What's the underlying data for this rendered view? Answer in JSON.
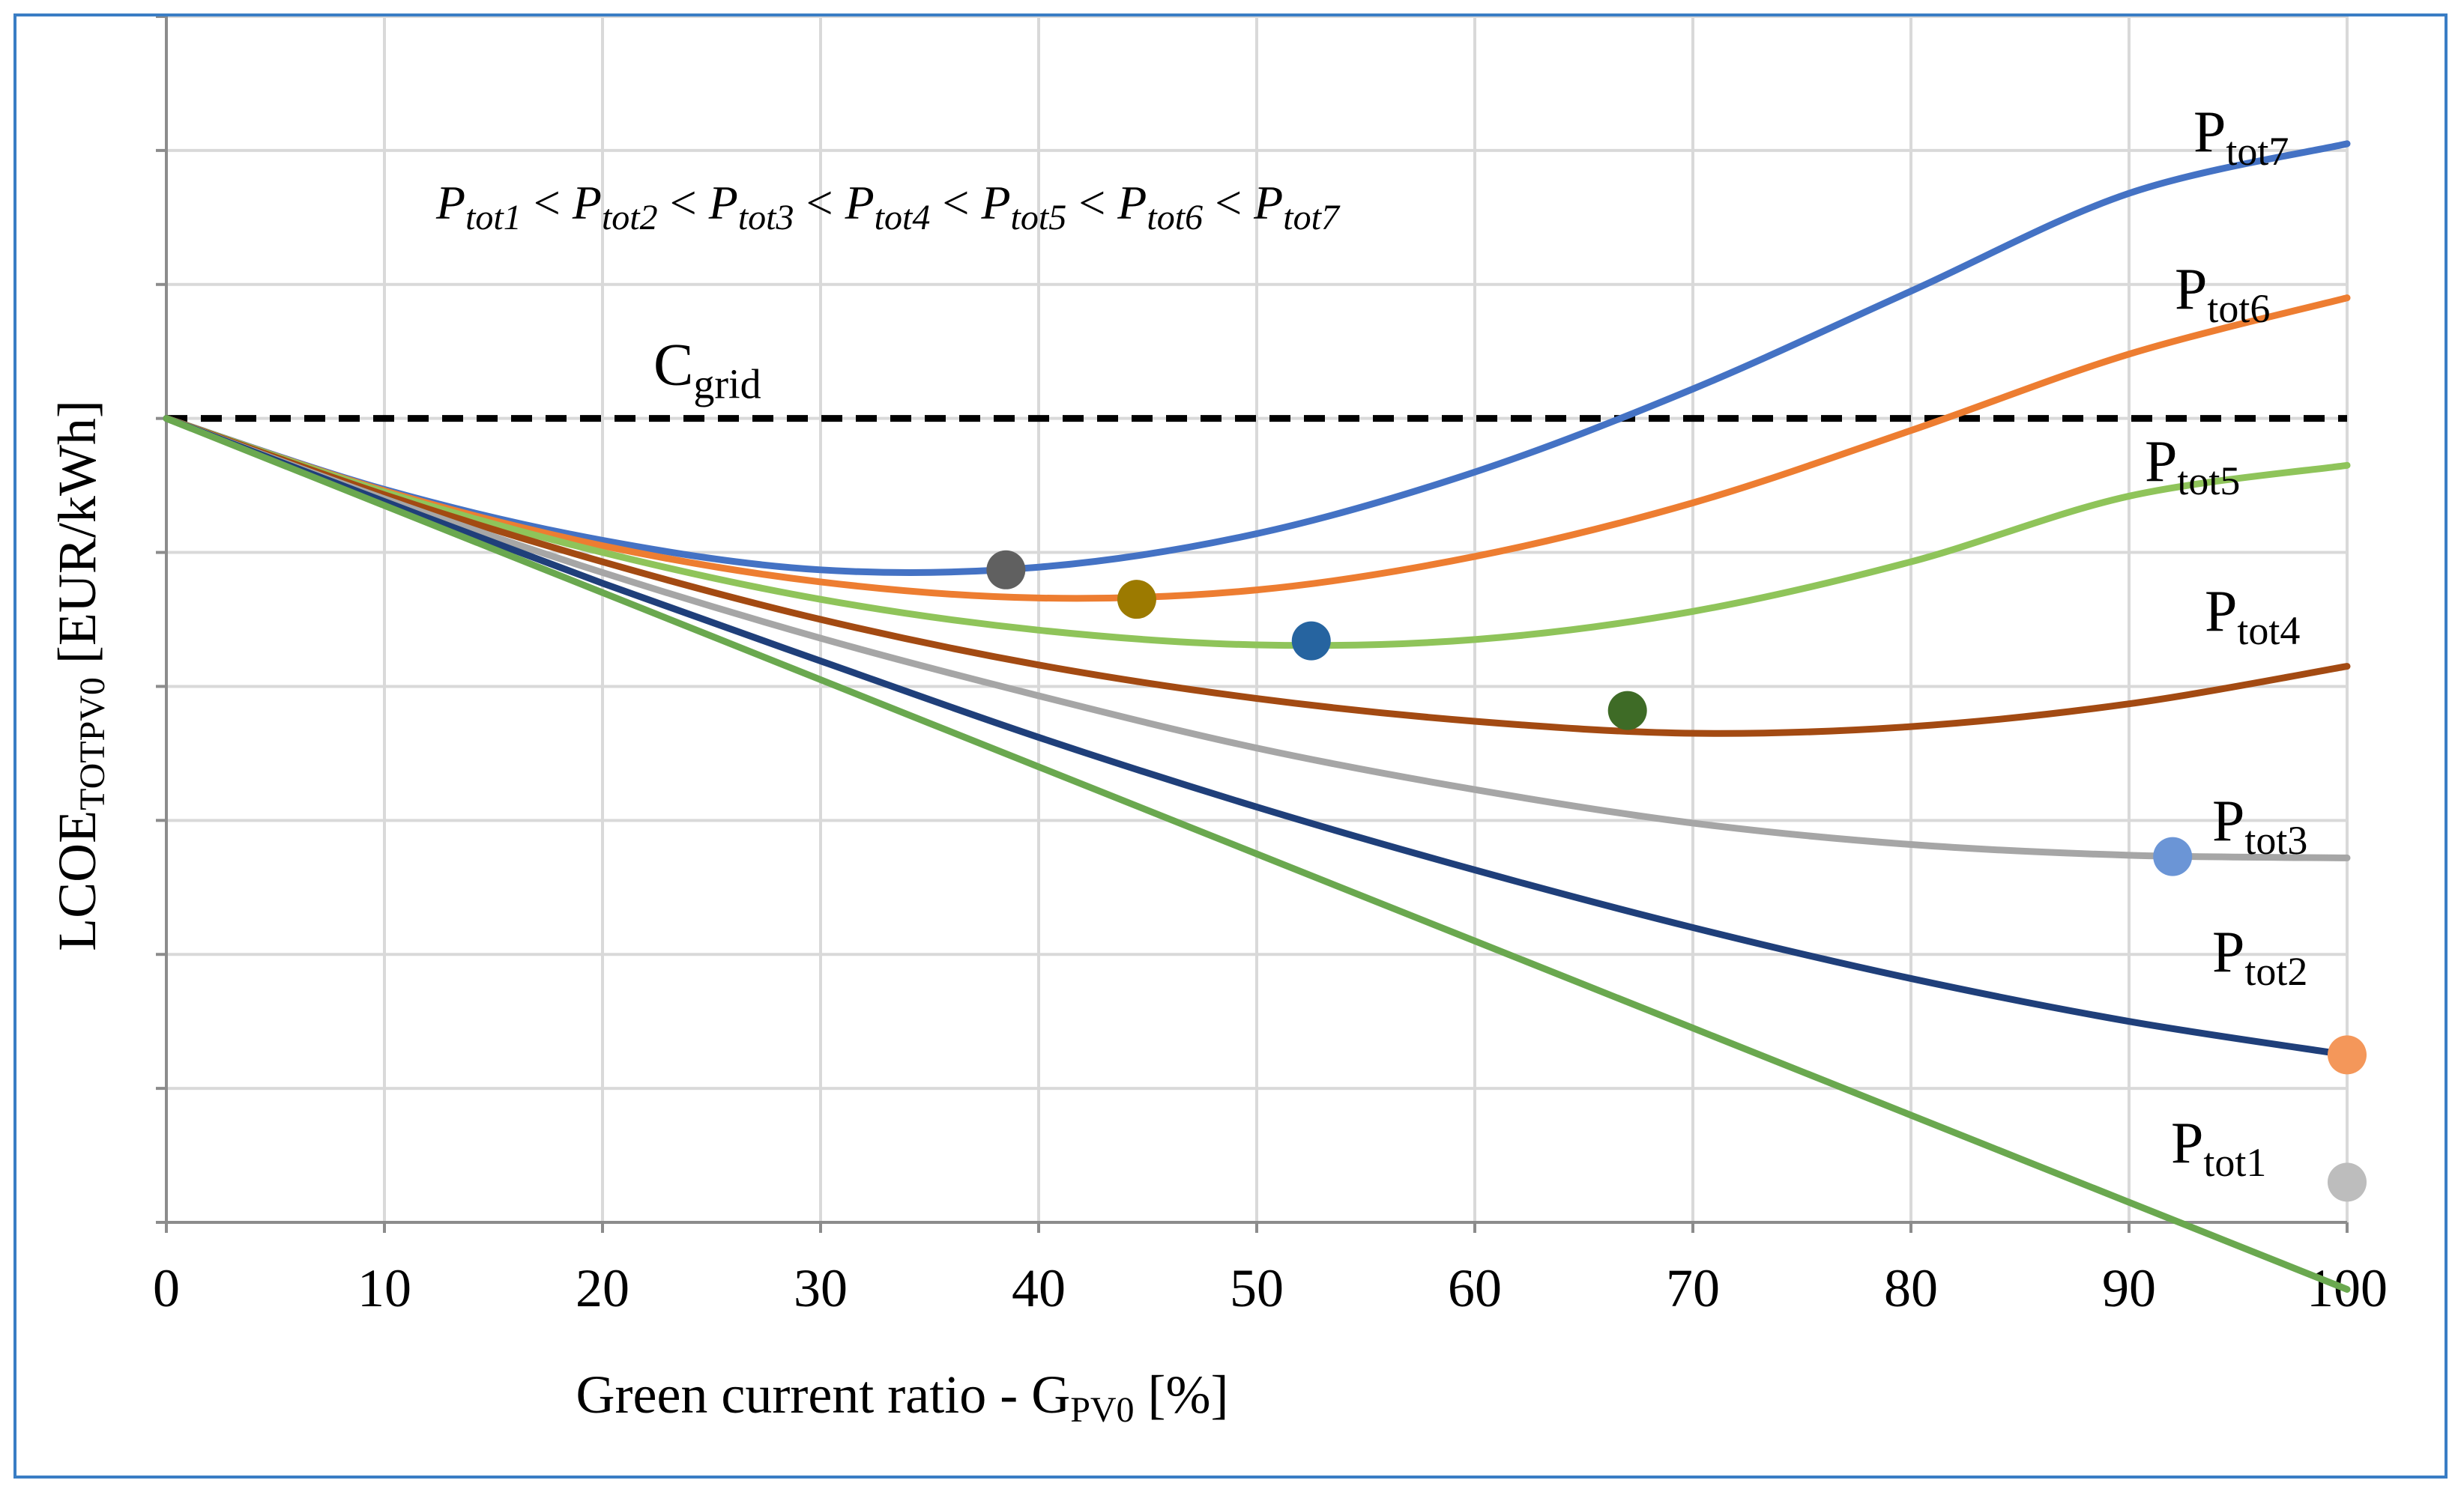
{
  "chart_data": {
    "type": "line",
    "title": "",
    "annotation_parts": [
      "P",
      "tot1",
      " < ",
      "P",
      "tot2",
      " < ",
      "P",
      "tot3",
      " < ",
      "P",
      "tot4",
      " < ",
      "P",
      "tot5",
      " < ",
      "P",
      "tot6",
      " < ",
      "P",
      "tot7"
    ],
    "xlabel": {
      "main": "Green current ratio - G",
      "sub": "PV0",
      "suffix": " [%]"
    },
    "ylabel": {
      "main": "LCOE",
      "sub": "TOTPV0",
      "suffix": " [EUR/kWh]"
    },
    "xlim": [
      0,
      100
    ],
    "ylim": [
      0,
      9
    ],
    "x_ticks": [
      0,
      10,
      20,
      30,
      40,
      50,
      60,
      70,
      80,
      90,
      100
    ],
    "x_tick_labels": [
      "0",
      "10",
      "20",
      "30",
      "40",
      "50",
      "60",
      "70",
      "80",
      "90",
      "100"
    ],
    "y_tick_labels_shown": false,
    "grid": true,
    "reference_line": {
      "label_main": "C",
      "label_sub": "grid",
      "value": 6.0,
      "color": "#000000",
      "style": "dashed"
    },
    "x": [
      0,
      10,
      20,
      30,
      40,
      50,
      60,
      70,
      80,
      90,
      100
    ],
    "series": [
      {
        "name_main": "P",
        "name_sub": "tot1",
        "color": "#6aa84f",
        "values": [
          6.0,
          5.35,
          4.7,
          4.05,
          3.4,
          2.75,
          2.1,
          1.45,
          0.8,
          0.15,
          -0.5
        ]
      },
      {
        "name_main": "P",
        "name_sub": "tot2",
        "color": "#1f3f7a",
        "values": [
          6.0,
          5.38,
          4.77,
          4.19,
          3.62,
          3.1,
          2.63,
          2.2,
          1.82,
          1.5,
          1.25
        ]
      },
      {
        "name_main": "P",
        "name_sub": "tot3",
        "color": "#a6a6a6",
        "values": [
          6.0,
          5.4,
          4.85,
          4.36,
          3.93,
          3.54,
          3.23,
          2.98,
          2.82,
          2.74,
          2.72
        ]
      },
      {
        "name_main": "P",
        "name_sub": "tot4",
        "color": "#a34a12",
        "values": [
          6.0,
          5.43,
          4.93,
          4.5,
          4.16,
          3.91,
          3.74,
          3.65,
          3.7,
          3.87,
          4.15
        ]
      },
      {
        "name_main": "P",
        "name_sub": "tot5",
        "color": "#8fc45a",
        "values": [
          6.0,
          5.45,
          5.0,
          4.65,
          4.42,
          4.31,
          4.35,
          4.56,
          4.93,
          5.42,
          5.65
        ]
      },
      {
        "name_main": "P",
        "name_sub": "tot6",
        "color": "#ed7d31",
        "values": [
          6.0,
          5.46,
          5.05,
          4.78,
          4.66,
          4.72,
          4.97,
          5.37,
          5.91,
          6.48,
          6.9
        ]
      },
      {
        "name_main": "P",
        "name_sub": "tot7",
        "color": "#4472c4",
        "values": [
          6.0,
          5.47,
          5.09,
          4.87,
          4.89,
          5.14,
          5.6,
          6.22,
          6.95,
          7.68,
          8.05
        ]
      }
    ],
    "optimum_markers": [
      {
        "x": 38.5,
        "y": 4.87,
        "color": "#606060"
      },
      {
        "x": 44.5,
        "y": 4.65,
        "color": "#9c7a00"
      },
      {
        "x": 52.5,
        "y": 4.34,
        "color": "#2664a0"
      },
      {
        "x": 67.0,
        "y": 3.82,
        "color": "#3e6b26"
      },
      {
        "x": 92.0,
        "y": 2.73,
        "color": "#6b95d6"
      },
      {
        "x": 100,
        "y": 1.25,
        "color": "#f4975a"
      },
      {
        "x": 100,
        "y": 0.3,
        "color": "#bdbdbd"
      }
    ],
    "grid_color": "#d9d9d9",
    "axis_color": "#8c8c8c"
  }
}
